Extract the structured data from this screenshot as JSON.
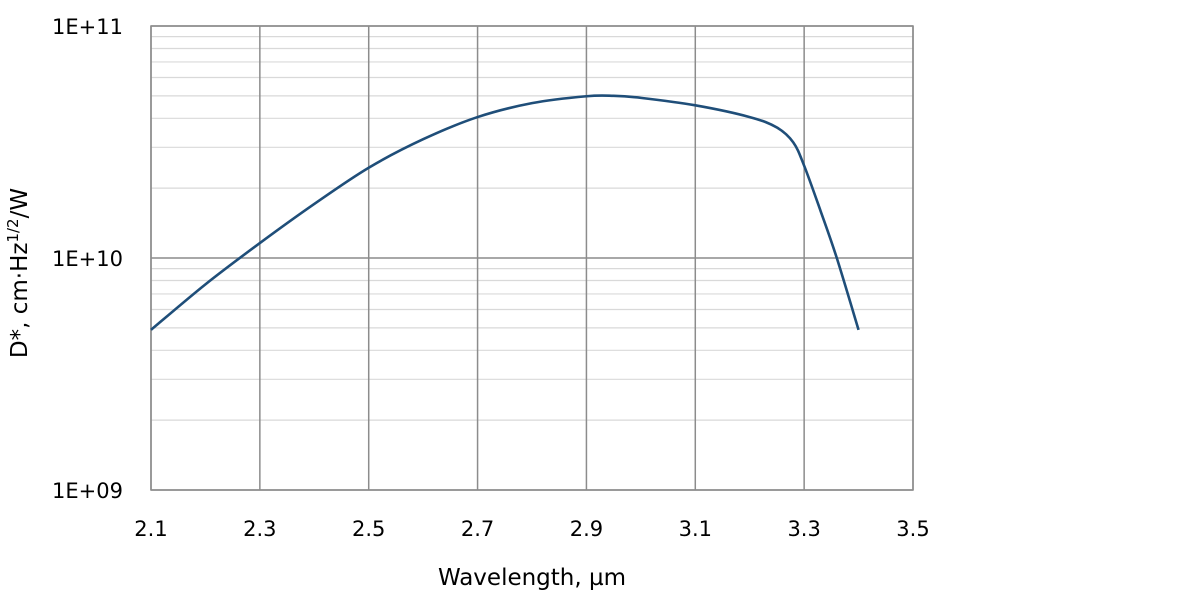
{
  "chart_data": {
    "type": "line",
    "xlabel": "Wavelength, µm",
    "ylabel": {
      "prefix": "D*, cm·Hz",
      "superscript": "1/2",
      "suffix": "/W"
    },
    "xlim": [
      2.1,
      3.5
    ],
    "ylim": [
      1000000000.0,
      100000000000.0
    ],
    "yscale": "log",
    "x_ticks": [
      "2.1",
      "2.3",
      "2.5",
      "2.7",
      "2.9",
      "3.1",
      "3.3",
      "3.5"
    ],
    "y_ticks": [
      "1E+09",
      "1E+10",
      "1E+11"
    ],
    "grid": true,
    "line_color": "#1f4e79",
    "series": [
      {
        "x": [
          2.1,
          2.2,
          2.3,
          2.4,
          2.5,
          2.6,
          2.7,
          2.8,
          2.9,
          2.95,
          3.0,
          3.1,
          3.2,
          3.25,
          3.28,
          3.3,
          3.33,
          3.36,
          3.4
        ],
        "y": [
          4900000000.0,
          7700000000.0,
          11600000000.0,
          17100000000.0,
          24500000000.0,
          32500000000.0,
          40500000000.0,
          46500000000.0,
          49800000000.0,
          50000000000.0,
          49000000000.0,
          45500000000.0,
          40500000000.0,
          36500000000.0,
          31500000000.0,
          25000000000.0,
          16000000000.0,
          10000000000.0,
          4900000000.0
        ]
      }
    ]
  }
}
